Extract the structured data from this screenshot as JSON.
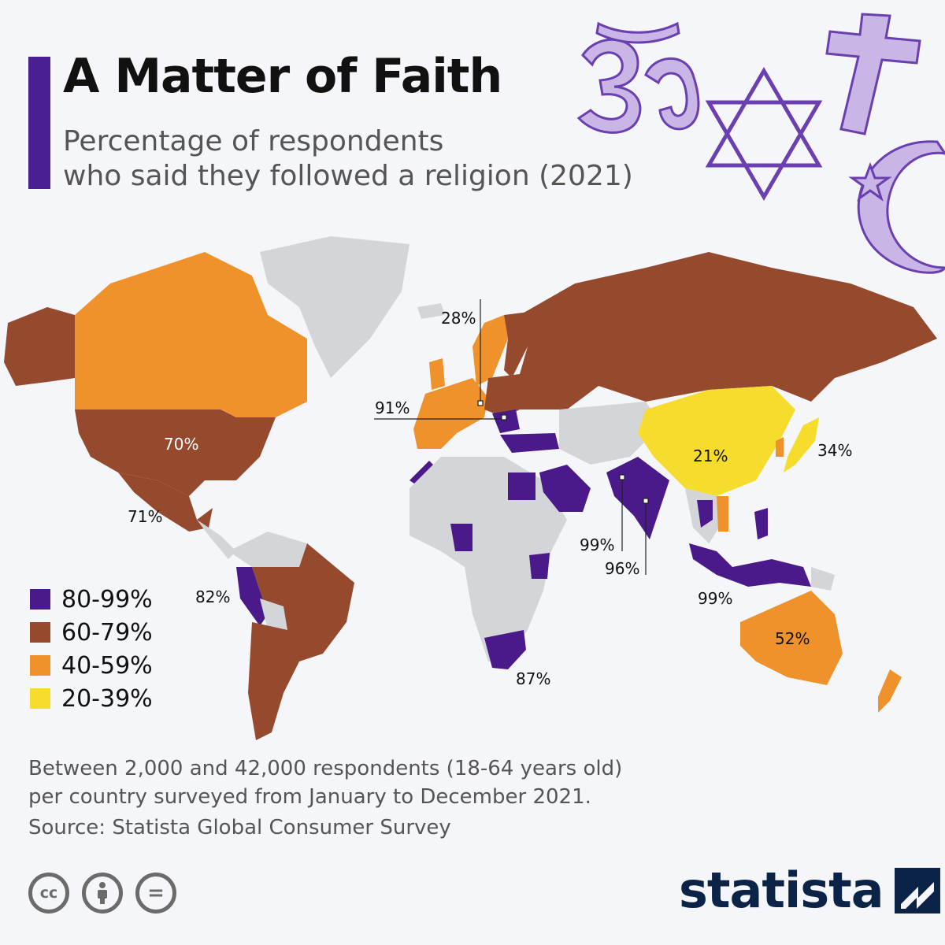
{
  "header": {
    "title": "A Matter of Faith",
    "subtitle_line1": "Percentage of respondents",
    "subtitle_line2": "who said they followed a religion (2021)"
  },
  "colors": {
    "accent": "#4a1f8f",
    "band_80_99": "#4a1a8a",
    "band_60_79": "#954a2e",
    "band_40_59": "#f0922b",
    "band_20_39": "#f6dc2c",
    "no_data": "#d4d5d8",
    "symbols": "#c9b6e6"
  },
  "legend": [
    {
      "label": "80-99%",
      "color": "#4a1a8a"
    },
    {
      "label": "60-79%",
      "color": "#954a2e"
    },
    {
      "label": "40-59%",
      "color": "#f0922b"
    },
    {
      "label": "20-39%",
      "color": "#f6dc2c"
    }
  ],
  "map_labels": {
    "usa": "70%",
    "mexico": "71%",
    "peru": "82%",
    "sweden": "28%",
    "romania": "91%",
    "south_africa": "87%",
    "india_a": "99%",
    "india_b": "96%",
    "indonesia": "99%",
    "china": "21%",
    "japan": "34%",
    "australia": "52%"
  },
  "decor_icons": [
    "om-icon",
    "star-of-david-icon",
    "cross-icon",
    "crescent-star-icon"
  ],
  "footer": {
    "note_line1": "Between 2,000 and 42,000 respondents (18-64 years old)",
    "note_line2": "per country surveyed from January to December 2021.",
    "source": "Source: Statista Global Consumer Survey",
    "license_icons": [
      "cc-icon",
      "attribution-icon",
      "no-derivatives-icon"
    ],
    "license_text": {
      "cc": "cc",
      "nd": "="
    },
    "brand": "statista"
  }
}
